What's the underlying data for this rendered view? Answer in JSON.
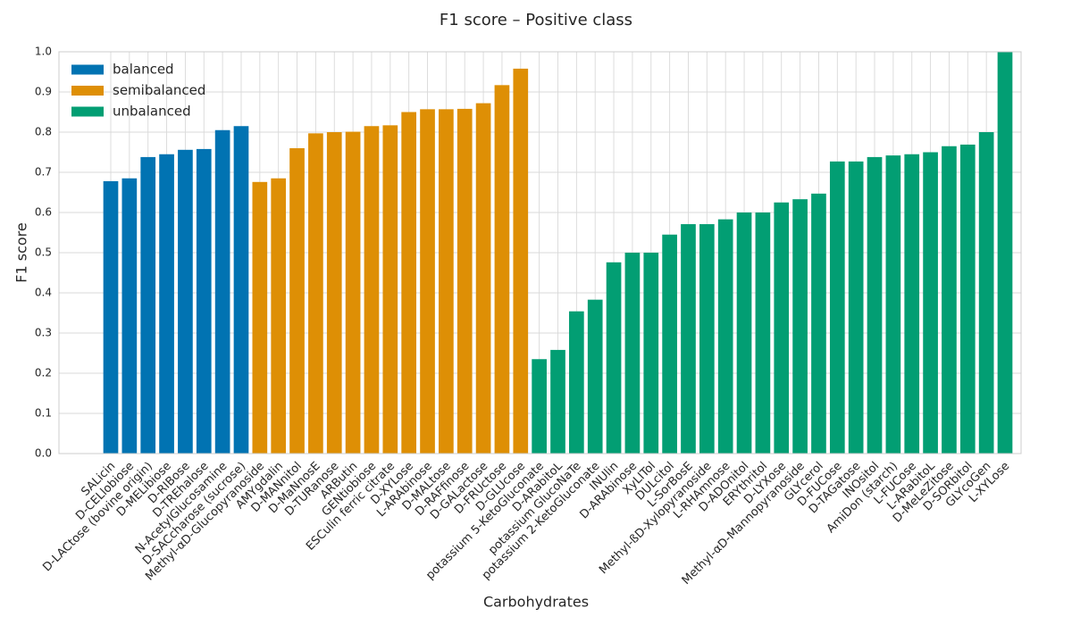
{
  "chart_data": {
    "type": "bar",
    "title": "F1 score – Positive class",
    "x_label": "Carbohydrates",
    "y_label": "F1 score",
    "categories": [
      "SALicin",
      "D-CELlobiose",
      "D-LACtose (bovine origin)",
      "D-MELibiose",
      "D-RIBose",
      "D-TREhalose",
      "N-AcetylGlucosamine",
      "D-SACcharose (sucrose)",
      "Methyl-αD-Glucopyranoside",
      "AMYgdalin",
      "D-MANnitol",
      "D-MaNnosE",
      "D-TURanose",
      "ARButin",
      "GENtiobiose",
      "ESCulin ferric citrate",
      "D-XYLose",
      "L-ARAbinose",
      "D-MALtose",
      "D-RAFfinose",
      "D-GALactose",
      "D-FRUctose",
      "D-GLUcose",
      "potassium 5-KetoGluconate",
      "D-ARabitoL",
      "potassium GlucoNaTe",
      "potassium 2-KetoGluconate",
      "INUlin",
      "D-ARAbinose",
      "XyLITol",
      "DULcitol",
      "L-SorBosE",
      "Methyl-ßD-Xylopyranoside",
      "L-RHAmnose",
      "D-ADOnitol",
      "ERYthritol",
      "D-LYXose",
      "Methyl-αD-Mannopyranoside",
      "GLYcerol",
      "D-FUCose",
      "D-TAGatose",
      "INOsitol",
      "AmiDon (starch)",
      "L-FUCose",
      "L-ARabitoL",
      "D-MeLeZitose",
      "D-SORbitol",
      "GLYcoGen",
      "L-XYLose"
    ],
    "series": [
      {
        "name": "balanced",
        "color": "#0173b2",
        "values": [
          0.678,
          0.685,
          0.738,
          0.745,
          0.756,
          0.758,
          0.805,
          0.815,
          null,
          null,
          null,
          null,
          null,
          null,
          null,
          null,
          null,
          null,
          null,
          null,
          null,
          null,
          null,
          null,
          null,
          null,
          null,
          null,
          null,
          null,
          null,
          null,
          null,
          null,
          null,
          null,
          null,
          null,
          null,
          null,
          null,
          null,
          null,
          null,
          null,
          null,
          null,
          null,
          null
        ]
      },
      {
        "name": "semibalanced",
        "color": "#de8f05",
        "values": [
          null,
          null,
          null,
          null,
          null,
          null,
          null,
          null,
          0.676,
          0.685,
          0.76,
          0.797,
          0.8,
          0.801,
          0.815,
          0.817,
          0.85,
          0.857,
          0.857,
          0.858,
          0.872,
          0.917,
          0.958,
          null,
          null,
          null,
          null,
          null,
          null,
          null,
          null,
          null,
          null,
          null,
          null,
          null,
          null,
          null,
          null,
          null,
          null,
          null,
          null,
          null,
          null,
          null,
          null,
          null,
          null
        ]
      },
      {
        "name": "unbalanced",
        "color": "#029e73",
        "values": [
          null,
          null,
          null,
          null,
          null,
          null,
          null,
          null,
          null,
          null,
          null,
          null,
          null,
          null,
          null,
          null,
          null,
          null,
          null,
          null,
          null,
          null,
          null,
          0.235,
          0.258,
          0.354,
          0.383,
          0.476,
          0.5,
          0.5,
          0.545,
          0.571,
          0.571,
          0.583,
          0.6,
          0.6,
          0.625,
          0.633,
          0.647,
          0.727,
          0.727,
          0.738,
          0.742,
          0.745,
          0.75,
          0.765,
          0.769,
          0.8,
          1.0
        ]
      }
    ],
    "ylim": [
      0,
      1
    ],
    "yticks": [
      {
        "value": 0,
        "label": "0.0"
      },
      0.1,
      0.2,
      0.3,
      0.4,
      0.5,
      0.6,
      0.7,
      0.8,
      0.9,
      {
        "value": 1,
        "label": "1.0"
      }
    ],
    "grid": true,
    "legend": "upper left"
  }
}
